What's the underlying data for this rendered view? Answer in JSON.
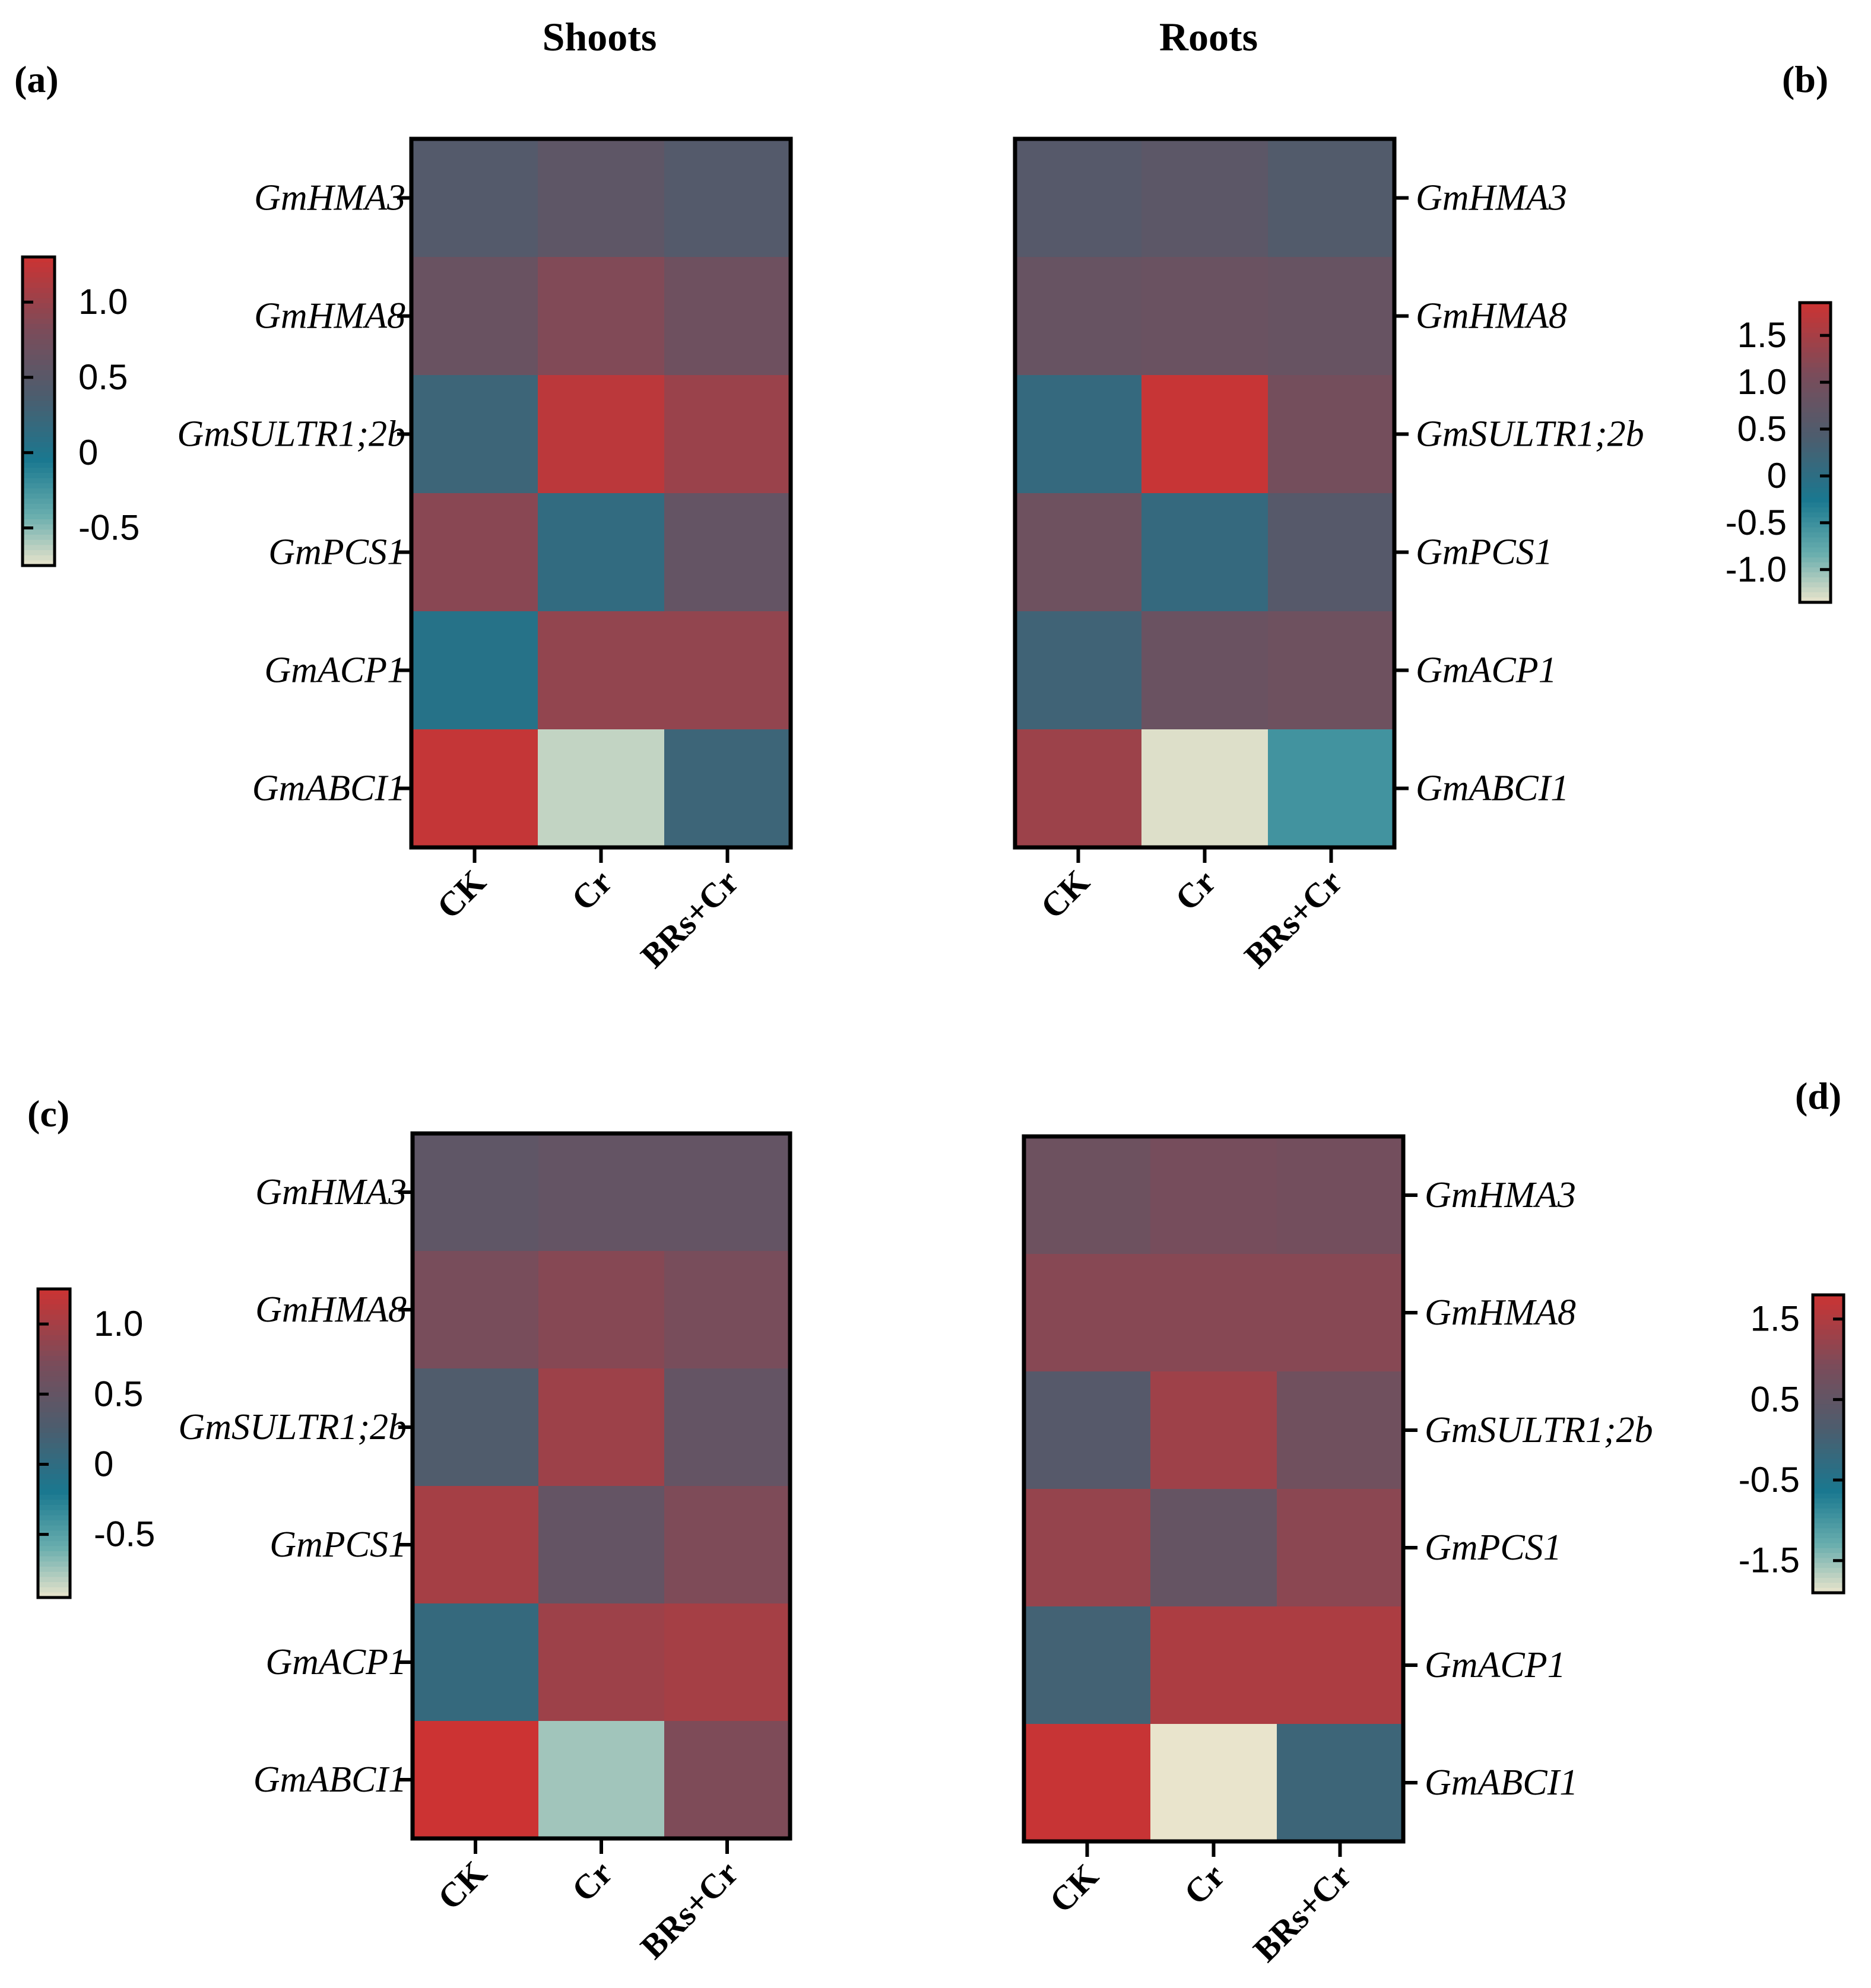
{
  "column_titles": {
    "left": "Shoots",
    "right": "Roots"
  },
  "colors": {
    "scale_low": "#e9e4cc",
    "scale_mid_low": "#6aaeae",
    "scale_zero": "#1a7890",
    "scale_mid": "#4c5d6e",
    "scale_high_mid": "#7a4c5a",
    "scale_high": "#cc3333"
  },
  "chart_data": [
    {
      "type": "heatmap",
      "panel": "(a)",
      "genes": [
        "GmHMA3",
        "GmHMA8",
        "GmSULTR1;2b",
        "GmPCS1",
        "GmACP1",
        "GmABCI1"
      ],
      "conditions": [
        "CK",
        "Cr",
        "BRs+Cr"
      ],
      "values": [
        [
          0.45,
          0.55,
          0.45
        ],
        [
          0.65,
          0.85,
          0.7
        ],
        [
          0.25,
          1.2,
          1.0
        ],
        [
          0.9,
          0.15,
          0.6
        ],
        [
          0.05,
          0.95,
          0.95
        ],
        [
          1.25,
          -0.65,
          0.25
        ]
      ],
      "colorbar": {
        "ticks": [
          "1.0",
          "0.5",
          "0",
          "-0.5"
        ],
        "tick_values": [
          1.0,
          0.5,
          0,
          -0.5
        ],
        "range": [
          -0.75,
          1.3
        ]
      }
    },
    {
      "type": "heatmap",
      "panel": "(b)",
      "genes": [
        "GmHMA3",
        "GmHMA8",
        "GmSULTR1;2b",
        "GmPCS1",
        "GmACP1",
        "GmABCI1"
      ],
      "conditions": [
        "CK",
        "Cr",
        "BRs+Cr"
      ],
      "values": [
        [
          0.55,
          0.65,
          0.5
        ],
        [
          0.8,
          0.85,
          0.8
        ],
        [
          0.1,
          1.8,
          1.0
        ],
        [
          0.9,
          0.1,
          0.55
        ],
        [
          0.25,
          0.85,
          0.9
        ],
        [
          1.4,
          -1.3,
          -0.55
        ]
      ],
      "colorbar": {
        "ticks": [
          "1.5",
          "1.0",
          "0.5",
          "0",
          "-0.5",
          "-1.0"
        ],
        "tick_values": [
          1.5,
          1.0,
          0.5,
          0,
          -0.5,
          -1.0
        ],
        "range": [
          -1.35,
          1.85
        ]
      }
    },
    {
      "type": "heatmap",
      "panel": "(c)",
      "genes": [
        "GmHMA3",
        "GmHMA8",
        "GmSULTR1;2b",
        "GmPCS1",
        "GmACP1",
        "GmABCI1"
      ],
      "conditions": [
        "CK",
        "Cr",
        "BRs+Cr"
      ],
      "values": [
        [
          0.45,
          0.5,
          0.5
        ],
        [
          0.7,
          0.8,
          0.7
        ],
        [
          0.3,
          0.95,
          0.5
        ],
        [
          1.0,
          0.5,
          0.75
        ],
        [
          0.05,
          0.95,
          1.0
        ],
        [
          1.25,
          -0.75,
          0.75
        ]
      ],
      "colorbar": {
        "ticks": [
          "1.0",
          "0.5",
          "0",
          "-0.5"
        ],
        "tick_values": [
          1.0,
          0.5,
          0,
          -0.5
        ],
        "range": [
          -0.95,
          1.25
        ]
      }
    },
    {
      "type": "heatmap",
      "panel": "(d)",
      "genes": [
        "GmHMA3",
        "GmHMA8",
        "GmSULTR1;2b",
        "GmPCS1",
        "GmACP1",
        "GmABCI1"
      ],
      "conditions": [
        "CK",
        "Cr",
        "BRs+Cr"
      ],
      "values": [
        [
          0.7,
          0.85,
          0.8
        ],
        [
          1.05,
          1.05,
          1.05
        ],
        [
          0.3,
          1.3,
          0.75
        ],
        [
          1.2,
          0.55,
          1.1
        ],
        [
          0.0,
          1.45,
          1.45
        ],
        [
          1.75,
          -1.9,
          -0.1
        ]
      ],
      "colorbar": {
        "ticks": [
          "1.5",
          "0.5",
          "-0.5",
          "-1.5"
        ],
        "tick_values": [
          1.5,
          0.5,
          -0.5,
          -1.5
        ],
        "range": [
          -1.9,
          1.8
        ]
      }
    }
  ]
}
